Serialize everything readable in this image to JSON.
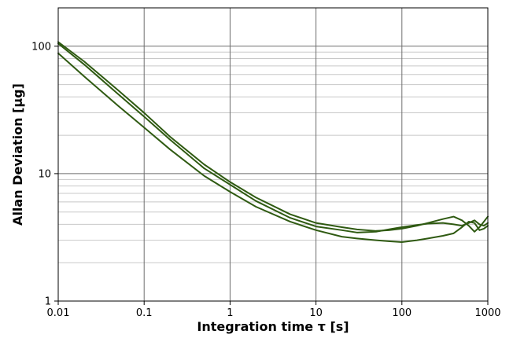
{
  "chart_data": {
    "type": "line",
    "title": "",
    "xlabel": "Integration time τ [s]",
    "ylabel": "Allan Deviation [µg]",
    "x_scale": "log",
    "y_scale": "log",
    "xlim": [
      0.01,
      1000
    ],
    "ylim": [
      1,
      200
    ],
    "x_ticks": [
      0.01,
      0.1,
      1,
      10,
      100,
      1000
    ],
    "x_tick_labels": [
      "0.01",
      "0.1",
      "1",
      "10",
      "100",
      "1000"
    ],
    "y_ticks": [
      1,
      10,
      100
    ],
    "y_tick_labels": [
      "1",
      "10",
      "100"
    ],
    "grid": {
      "major": true,
      "minor_y": true
    },
    "legend": "none",
    "line_color": "#2f5a12",
    "grid_major_color": "#6e6e6e",
    "grid_minor_color": "#c8c8c8",
    "series": [
      {
        "x": [
          0.01,
          0.02,
          0.05,
          0.1,
          0.2,
          0.5,
          1,
          2,
          5,
          10,
          20,
          30,
          50,
          70,
          100,
          150,
          200,
          300,
          400,
          500,
          600,
          700,
          800,
          900,
          1000
        ],
        "y": [
          105,
          72,
          42,
          28,
          18.5,
          11,
          8.2,
          6.1,
          4.5,
          3.85,
          3.6,
          3.45,
          3.5,
          3.65,
          3.8,
          3.95,
          4.05,
          4.1,
          4.0,
          3.9,
          4.1,
          4.3,
          4.0,
          3.9,
          4.1
        ]
      },
      {
        "x": [
          0.01,
          0.02,
          0.05,
          0.1,
          0.2,
          0.5,
          1,
          2,
          5,
          10,
          20,
          30,
          50,
          70,
          100,
          150,
          200,
          300,
          400,
          500,
          600,
          700,
          800,
          900,
          1000
        ],
        "y": [
          108,
          76,
          45,
          30,
          19.5,
          11.8,
          8.6,
          6.5,
          4.8,
          4.1,
          3.8,
          3.65,
          3.55,
          3.6,
          3.7,
          3.9,
          4.1,
          4.4,
          4.6,
          4.3,
          3.9,
          3.5,
          3.8,
          4.2,
          4.6
        ]
      },
      {
        "x": [
          0.01,
          0.02,
          0.05,
          0.1,
          0.2,
          0.5,
          1,
          2,
          5,
          10,
          20,
          30,
          50,
          70,
          100,
          150,
          200,
          300,
          400,
          500,
          600,
          700,
          800,
          900,
          1000
        ],
        "y": [
          88,
          58,
          34,
          23,
          15.5,
          9.6,
          7.2,
          5.5,
          4.2,
          3.6,
          3.2,
          3.1,
          3.0,
          2.95,
          2.9,
          3.0,
          3.1,
          3.25,
          3.4,
          3.8,
          4.2,
          4.1,
          3.6,
          3.7,
          3.9
        ]
      }
    ]
  }
}
